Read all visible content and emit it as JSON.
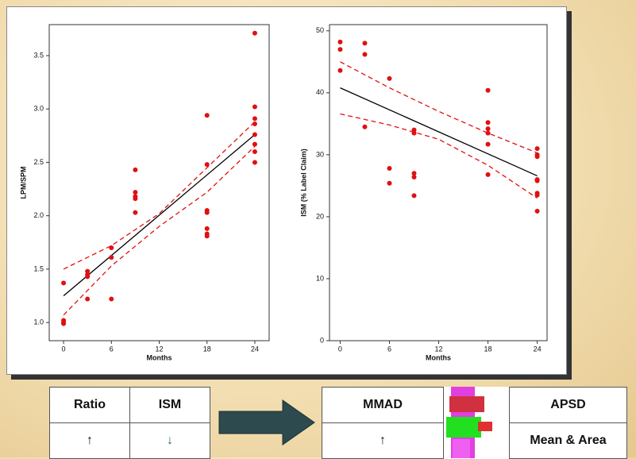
{
  "chart_data": [
    {
      "type": "scatter",
      "x_label": "Months",
      "y_label": "LPM/SPM",
      "color": "#e01010",
      "x": [
        0,
        0,
        0,
        0,
        3,
        3,
        3,
        3,
        6,
        6,
        6,
        9,
        9,
        9,
        9,
        9,
        18,
        18,
        18,
        18,
        18,
        18,
        18,
        24,
        24,
        24,
        24,
        24,
        24,
        24,
        24
      ],
      "values": [
        1.37,
        1.02,
        1.0,
        0.99,
        1.48,
        1.45,
        1.43,
        1.22,
        1.7,
        1.61,
        1.22,
        2.43,
        2.22,
        2.18,
        2.16,
        2.03,
        2.94,
        2.48,
        2.05,
        2.03,
        1.88,
        1.83,
        1.81,
        3.71,
        3.02,
        2.91,
        2.86,
        2.76,
        2.67,
        2.6,
        2.5
      ],
      "fit": {
        "x": [
          0,
          24
        ],
        "values": [
          1.25,
          2.76
        ]
      },
      "upper": {
        "x": [
          0,
          6,
          12,
          18,
          24
        ],
        "values": [
          1.5,
          1.72,
          2.02,
          2.45,
          2.88
        ]
      },
      "lower": {
        "x": [
          0,
          6,
          12,
          18,
          24
        ],
        "values": [
          1.07,
          1.53,
          1.9,
          2.22,
          2.65
        ]
      },
      "xlim": [
        -1.8,
        25.8
      ],
      "xticks": [
        0,
        6,
        12,
        18,
        24
      ],
      "ylim": [
        0.83,
        3.79
      ],
      "yticks": [
        {
          "value": 1,
          "label": "1.0"
        },
        1.5,
        {
          "value": 2,
          "label": "2.0"
        },
        2.5,
        {
          "value": 3,
          "label": "3.0"
        },
        3.5
      ]
    },
    {
      "type": "scatter",
      "x_label": "Months",
      "y_label": "ISM (% Label Claim)",
      "color": "#e01010",
      "x": [
        0,
        0,
        0,
        3,
        3,
        3,
        6,
        6,
        6,
        9,
        9,
        9,
        9,
        9,
        18,
        18,
        18,
        18,
        18,
        18,
        24,
        24,
        24,
        24,
        24,
        24,
        24,
        24
      ],
      "values": [
        48.2,
        47.0,
        43.6,
        48.0,
        46.2,
        34.5,
        42.3,
        27.8,
        25.4,
        34.0,
        33.5,
        27.0,
        26.4,
        23.4,
        40.4,
        35.2,
        34.2,
        33.5,
        31.7,
        26.8,
        31.0,
        30.0,
        29.7,
        26.0,
        25.8,
        23.8,
        23.5,
        20.9
      ],
      "fit": {
        "x": [
          0,
          24
        ],
        "values": [
          40.8,
          26.6
        ]
      },
      "upper": {
        "x": [
          0,
          6,
          12,
          18,
          24
        ],
        "values": [
          45,
          40.8,
          37,
          33.5,
          30.3
        ]
      },
      "lower": {
        "x": [
          0,
          6,
          12,
          18,
          24
        ],
        "values": [
          36.6,
          34.8,
          32.5,
          28.3,
          23
        ]
      },
      "xlim": [
        -1.3,
        25.2
      ],
      "xticks": [
        0,
        6,
        12,
        18,
        24
      ],
      "ylim": [
        0,
        51
      ],
      "yticks": [
        0,
        10,
        20,
        30,
        40,
        50
      ]
    }
  ],
  "table_left": {
    "header": [
      "Ratio",
      "ISM"
    ],
    "row": [
      "↑",
      "↓"
    ]
  },
  "table_right": {
    "header": [
      "MMAD",
      "APSD"
    ],
    "row": [
      "↑",
      "Mean & Area"
    ]
  }
}
